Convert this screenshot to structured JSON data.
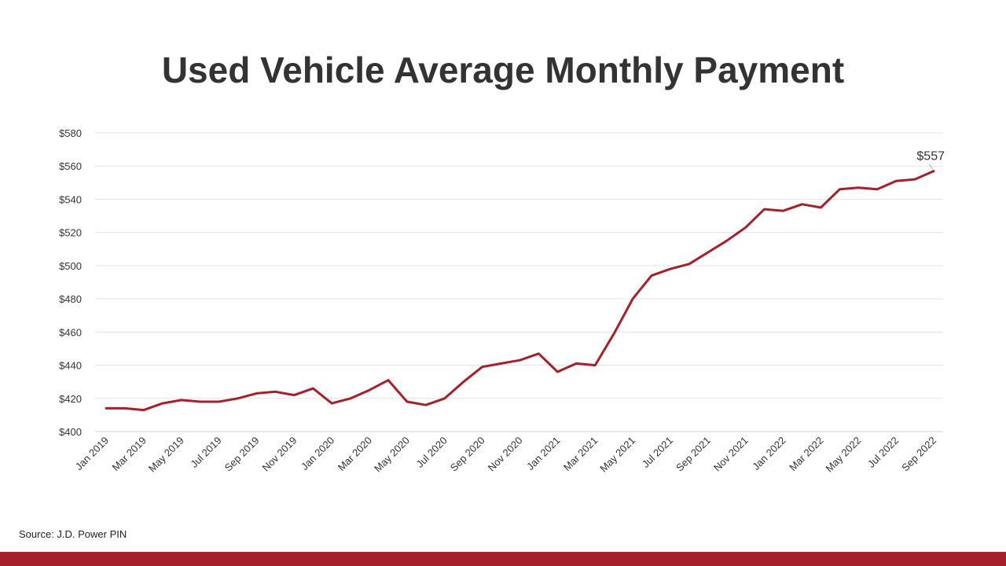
{
  "slide": {
    "title": "Used Vehicle Average Monthly Payment",
    "source": "Source: J.D. Power PIN",
    "accent_color": "#a5202a"
  },
  "chart_data": {
    "type": "line",
    "title": "Used Vehicle Average Monthly Payment",
    "xlabel": "",
    "ylabel": "",
    "ylim": [
      400,
      580
    ],
    "yticks": [
      400,
      420,
      440,
      460,
      480,
      500,
      520,
      540,
      560,
      580
    ],
    "ytick_prefix": "$",
    "grid": true,
    "legend": "none",
    "line_color": "#a5202a",
    "categories": [
      "Jan 2019",
      "Feb 2019",
      "Mar 2019",
      "Apr 2019",
      "May 2019",
      "Jun 2019",
      "Jul 2019",
      "Aug 2019",
      "Sep 2019",
      "Oct 2019",
      "Nov 2019",
      "Dec 2019",
      "Jan 2020",
      "Feb 2020",
      "Mar 2020",
      "Apr 2020",
      "May 2020",
      "Jun 2020",
      "Jul 2020",
      "Aug 2020",
      "Sep 2020",
      "Oct 2020",
      "Nov 2020",
      "Dec 2020",
      "Jan 2021",
      "Feb 2021",
      "Mar 2021",
      "Apr 2021",
      "May 2021",
      "Jun 2021",
      "Jul 2021",
      "Aug 2021",
      "Sep 2021",
      "Oct 2021",
      "Nov 2021",
      "Dec 2021",
      "Jan 2022",
      "Feb 2022",
      "Mar 2022",
      "Apr 2022",
      "May 2022",
      "Jun 2022",
      "Jul 2022",
      "Aug 2022",
      "Sep 2022"
    ],
    "xtick_labels": [
      "Jan 2019",
      "Mar 2019",
      "May 2019",
      "Jul 2019",
      "Sep 2019",
      "Nov 2019",
      "Jan 2020",
      "Mar 2020",
      "May 2020",
      "Jul 2020",
      "Sep 2020",
      "Nov 2020",
      "Jan 2021",
      "Mar 2021",
      "May 2021",
      "Jul 2021",
      "Sep 2021",
      "Nov 2021",
      "Jan 2022",
      "Mar 2022",
      "May 2022",
      "Jul 2022",
      "Sep 2022"
    ],
    "series": [
      {
        "values": [
          414,
          414,
          413,
          417,
          419,
          418,
          418,
          420,
          423,
          424,
          422,
          426,
          417,
          420,
          425,
          431,
          418,
          416,
          420,
          430,
          439,
          441,
          443,
          447,
          436,
          441,
          440,
          459,
          480,
          494,
          498,
          501,
          508,
          515,
          523,
          534,
          533,
          537,
          535,
          546,
          547,
          546,
          551,
          552,
          557
        ]
      }
    ],
    "annotations": [
      {
        "label": "$557",
        "category": "Sep 2022",
        "value": 557
      }
    ]
  }
}
